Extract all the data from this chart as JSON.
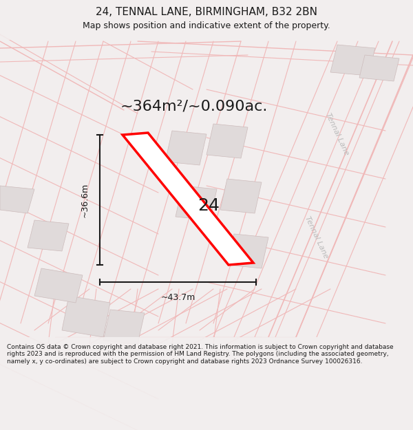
{
  "title": "24, TENNAL LANE, BIRMINGHAM, B32 2BN",
  "subtitle": "Map shows position and indicative extent of the property.",
  "area_text": "~364m²/~0.090ac.",
  "width_label": "~43.7m",
  "height_label": "~36.6m",
  "house_number": "24",
  "road_label": "Tennal Lane",
  "footer": "Contains OS data © Crown copyright and database right 2021. This information is subject to Crown copyright and database rights 2023 and is reproduced with the permission of HM Land Registry. The polygons (including the associated geometry, namely x, y co-ordinates) are subject to Crown copyright and database rights 2023 Ordnance Survey 100026316.",
  "bg_color": "#f2eeee",
  "map_bg": "#ffffff",
  "plot_color": "#ff0000",
  "plot_fill": "#ffffff",
  "road_line_color": "#f0b8b8",
  "building_fill": "#e0dada",
  "building_edge": "#ccbbbb",
  "dim_color": "#1a1a1a",
  "road_label_color": "#bbbbbb",
  "title_color": "#1a1a1a",
  "footer_color": "#1a1a1a",
  "title_fontsize": 11,
  "subtitle_fontsize": 9,
  "area_fontsize": 16,
  "dim_fontsize": 9,
  "label_fontsize": 14,
  "footer_fontsize": 6.5,
  "road_label_fontsize": 8
}
